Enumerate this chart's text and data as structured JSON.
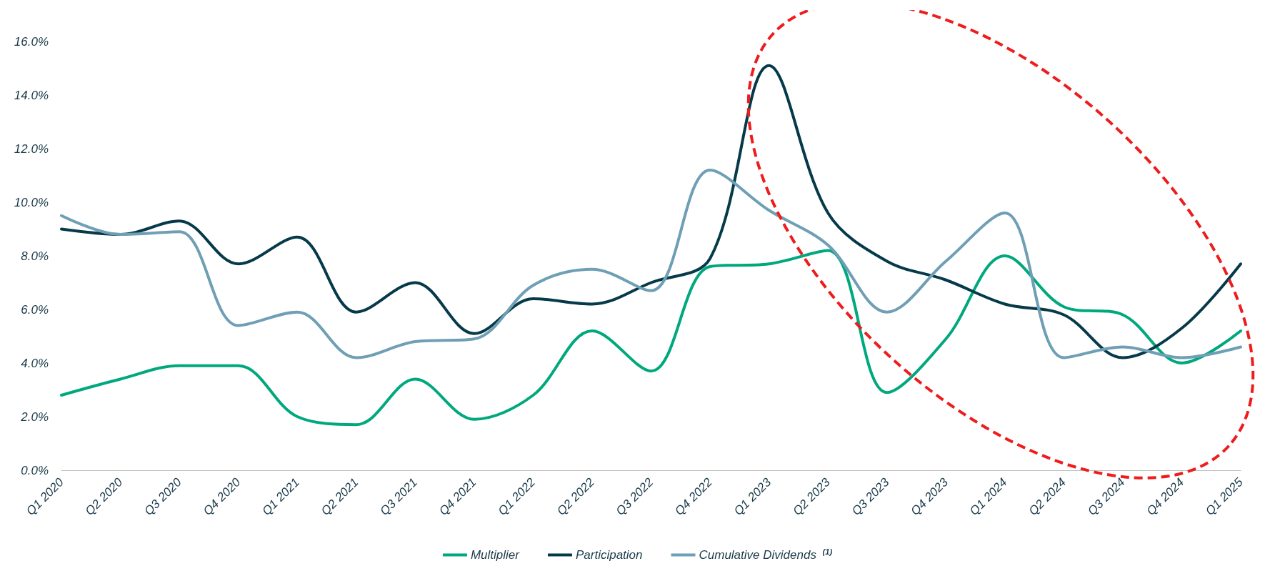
{
  "chart_data": {
    "type": "line",
    "categories": [
      "Q1 2020",
      "Q2 2020",
      "Q3 2020",
      "Q4 2020",
      "Q1 2021",
      "Q2 2021",
      "Q3 2021",
      "Q4 2021",
      "Q1 2022",
      "Q2 2022",
      "Q3 2022",
      "Q4 2022",
      "Q1 2023",
      "Q2 2023",
      "Q3 2023",
      "Q4 2023",
      "Q1 2024",
      "Q2 2024",
      "Q3 2024",
      "Q4 2024",
      "Q1 2025"
    ],
    "series": [
      {
        "name": "Multiplier",
        "color": "#00a87e",
        "values": [
          2.8,
          3.4,
          3.9,
          3.9,
          2.0,
          1.7,
          3.4,
          1.9,
          2.8,
          5.2,
          3.7,
          7.6,
          7.7,
          8.2,
          2.9,
          4.9,
          8.0,
          6.1,
          5.8,
          4.0,
          5.2
        ]
      },
      {
        "name": "Participation",
        "color": "#063a4a",
        "values": [
          9.0,
          8.8,
          9.3,
          7.7,
          8.7,
          5.9,
          7.0,
          5.1,
          6.4,
          6.2,
          7.0,
          7.9,
          15.1,
          9.6,
          7.8,
          7.1,
          6.2,
          5.8,
          4.2,
          5.3,
          7.7
        ]
      },
      {
        "name": "Cumulative Dividends $^{(1)}$",
        "color": "#6f9fb5",
        "values": [
          9.5,
          8.8,
          8.9,
          5.4,
          5.9,
          4.2,
          4.8,
          4.9,
          6.9,
          7.5,
          6.7,
          11.2,
          9.7,
          8.4,
          5.9,
          7.8,
          9.6,
          4.2,
          4.6,
          4.2,
          4.6
        ]
      }
    ],
    "ylim": [
      0,
      16
    ],
    "yticks": [
      {
        "value": 0,
        "label": "0.0%"
      },
      {
        "value": 2,
        "label": "2.0%"
      },
      {
        "value": 4,
        "label": "4.0%"
      },
      {
        "value": 6,
        "label": "6.0%"
      },
      {
        "value": 8,
        "label": "8.0%"
      },
      {
        "value": 10,
        "label": "10.0%"
      },
      {
        "value": 12,
        "label": "12.0%"
      },
      {
        "value": 14,
        "label": "14.0%"
      },
      {
        "value": 16,
        "label": "16.0%"
      }
    ],
    "grid": false,
    "legend": "bottom",
    "marker": "none",
    "line_style": "solid"
  }
}
